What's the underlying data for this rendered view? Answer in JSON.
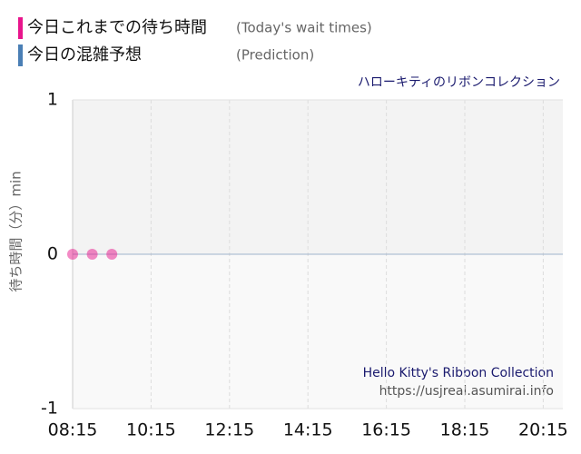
{
  "chart_data": {
    "type": "scatter",
    "subtitle": "ハローキティのリボンコレクション",
    "ylabel": "待ち時間（分）min",
    "watermark": [
      "Hello Kitty's Ribbon Collection",
      "https://usjreal.asumirai.info"
    ],
    "x": [
      495,
      525,
      555
    ],
    "series": [
      {
        "name": "今日これまでの待ち時間",
        "note": "(Today's wait times)",
        "color": "#e8158c",
        "values": [
          0,
          0,
          0
        ]
      },
      {
        "name": "今日の混雑予想",
        "note": "(Prediction)",
        "color": "#4a7fb5",
        "values": [
          null,
          null,
          null
        ]
      }
    ],
    "xlim": [
      495,
      1245
    ],
    "xticks": [
      {
        "value": 495,
        "label": "08:15"
      },
      {
        "value": 615,
        "label": "10:15"
      },
      {
        "value": 735,
        "label": "12:15"
      },
      {
        "value": 855,
        "label": "14:15"
      },
      {
        "value": 975,
        "label": "16:15"
      },
      {
        "value": 1095,
        "label": "18:15"
      },
      {
        "value": 1215,
        "label": "20:15"
      }
    ],
    "ylim": [
      -1,
      1
    ],
    "yticks": [
      -1,
      0,
      1
    ],
    "grid": true
  }
}
